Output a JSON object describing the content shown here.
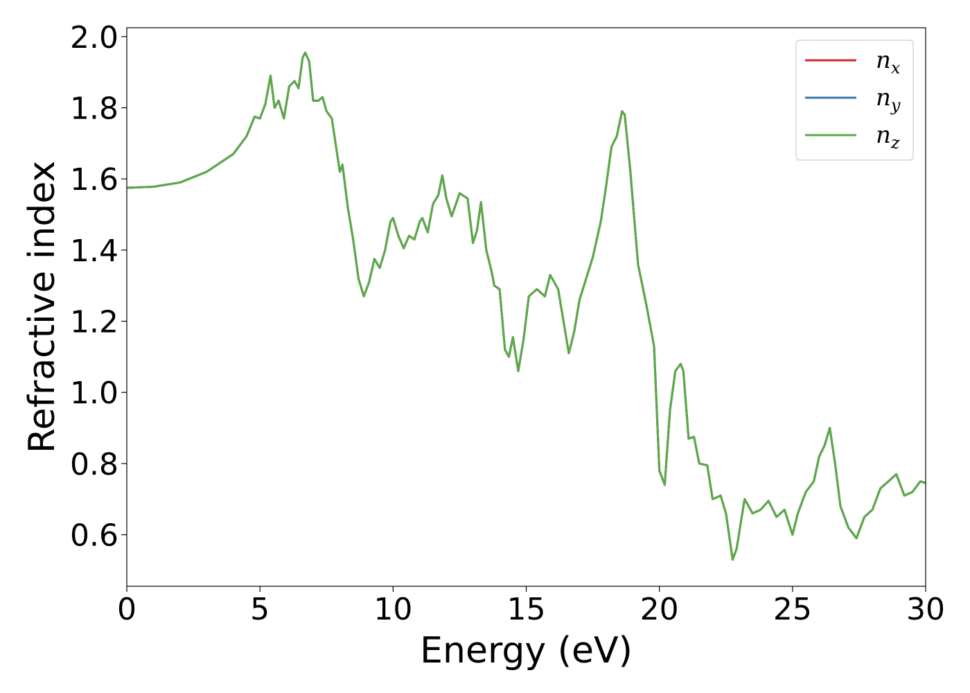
{
  "chart_data": {
    "type": "line",
    "title": "",
    "xlabel": "Energy (eV)",
    "ylabel": "Refractive index",
    "xlim": [
      0,
      30
    ],
    "ylim": [
      0.455,
      2.025
    ],
    "xticks": [
      0,
      5,
      10,
      15,
      20,
      25,
      30
    ],
    "xtick_labels": [
      "0",
      "5",
      "10",
      "15",
      "20",
      "25",
      "30"
    ],
    "yticks": [
      0.6,
      0.8,
      1.0,
      1.2,
      1.4,
      1.6,
      1.8,
      2.0
    ],
    "ytick_labels": [
      "0.6",
      "0.8",
      "1.0",
      "1.2",
      "1.4",
      "1.6",
      "1.8",
      "2.0"
    ],
    "grid": false,
    "legend_position": "top-right",
    "series": [
      {
        "name": "n_x",
        "label_main": "n",
        "label_sub": "x",
        "color": "#d62728",
        "points": [
          [
            0,
            1.575
          ],
          [
            1,
            1.578
          ],
          [
            2,
            1.59
          ],
          [
            3,
            1.62
          ],
          [
            4,
            1.67
          ],
          [
            4.5,
            1.72
          ],
          [
            4.8,
            1.775
          ],
          [
            5.0,
            1.77
          ],
          [
            5.2,
            1.81
          ],
          [
            5.4,
            1.89
          ],
          [
            5.55,
            1.8
          ],
          [
            5.7,
            1.82
          ],
          [
            5.9,
            1.77
          ],
          [
            6.1,
            1.86
          ],
          [
            6.3,
            1.875
          ],
          [
            6.45,
            1.855
          ],
          [
            6.6,
            1.94
          ],
          [
            6.7,
            1.955
          ],
          [
            6.85,
            1.93
          ],
          [
            7.0,
            1.82
          ],
          [
            7.2,
            1.82
          ],
          [
            7.35,
            1.83
          ],
          [
            7.5,
            1.79
          ],
          [
            7.7,
            1.77
          ],
          [
            7.9,
            1.67
          ],
          [
            8.0,
            1.62
          ],
          [
            8.1,
            1.64
          ],
          [
            8.3,
            1.52
          ],
          [
            8.5,
            1.43
          ],
          [
            8.7,
            1.32
          ],
          [
            8.9,
            1.27
          ],
          [
            9.1,
            1.31
          ],
          [
            9.3,
            1.375
          ],
          [
            9.5,
            1.35
          ],
          [
            9.7,
            1.4
          ],
          [
            9.9,
            1.48
          ],
          [
            10.0,
            1.49
          ],
          [
            10.2,
            1.44
          ],
          [
            10.4,
            1.405
          ],
          [
            10.6,
            1.44
          ],
          [
            10.8,
            1.43
          ],
          [
            11.0,
            1.48
          ],
          [
            11.1,
            1.49
          ],
          [
            11.3,
            1.45
          ],
          [
            11.5,
            1.53
          ],
          [
            11.7,
            1.555
          ],
          [
            11.85,
            1.61
          ],
          [
            12.0,
            1.545
          ],
          [
            12.2,
            1.495
          ],
          [
            12.5,
            1.56
          ],
          [
            12.8,
            1.545
          ],
          [
            13.0,
            1.42
          ],
          [
            13.15,
            1.455
          ],
          [
            13.3,
            1.535
          ],
          [
            13.5,
            1.4
          ],
          [
            13.7,
            1.34
          ],
          [
            13.8,
            1.3
          ],
          [
            14.0,
            1.29
          ],
          [
            14.2,
            1.12
          ],
          [
            14.35,
            1.1
          ],
          [
            14.5,
            1.155
          ],
          [
            14.7,
            1.06
          ],
          [
            14.9,
            1.15
          ],
          [
            15.1,
            1.27
          ],
          [
            15.4,
            1.29
          ],
          [
            15.7,
            1.27
          ],
          [
            15.9,
            1.33
          ],
          [
            16.2,
            1.29
          ],
          [
            16.4,
            1.2
          ],
          [
            16.6,
            1.11
          ],
          [
            16.8,
            1.17
          ],
          [
            17.0,
            1.26
          ],
          [
            17.5,
            1.38
          ],
          [
            17.8,
            1.48
          ],
          [
            18.0,
            1.58
          ],
          [
            18.2,
            1.69
          ],
          [
            18.4,
            1.72
          ],
          [
            18.6,
            1.79
          ],
          [
            18.7,
            1.78
          ],
          [
            18.9,
            1.63
          ],
          [
            19.2,
            1.36
          ],
          [
            19.5,
            1.25
          ],
          [
            19.8,
            1.13
          ],
          [
            20.0,
            0.78
          ],
          [
            20.2,
            0.74
          ],
          [
            20.4,
            0.95
          ],
          [
            20.6,
            1.06
          ],
          [
            20.8,
            1.08
          ],
          [
            20.9,
            1.06
          ],
          [
            21.1,
            0.87
          ],
          [
            21.3,
            0.875
          ],
          [
            21.5,
            0.8
          ],
          [
            21.8,
            0.795
          ],
          [
            22.0,
            0.7
          ],
          [
            22.3,
            0.71
          ],
          [
            22.5,
            0.66
          ],
          [
            22.75,
            0.53
          ],
          [
            22.9,
            0.56
          ],
          [
            23.2,
            0.7
          ],
          [
            23.5,
            0.66
          ],
          [
            23.8,
            0.67
          ],
          [
            24.1,
            0.695
          ],
          [
            24.4,
            0.65
          ],
          [
            24.7,
            0.67
          ],
          [
            25.0,
            0.6
          ],
          [
            25.2,
            0.66
          ],
          [
            25.5,
            0.72
          ],
          [
            25.8,
            0.75
          ],
          [
            26.0,
            0.82
          ],
          [
            26.2,
            0.85
          ],
          [
            26.4,
            0.9
          ],
          [
            26.6,
            0.8
          ],
          [
            26.8,
            0.68
          ],
          [
            27.1,
            0.62
          ],
          [
            27.4,
            0.59
          ],
          [
            27.7,
            0.65
          ],
          [
            28.0,
            0.67
          ],
          [
            28.3,
            0.73
          ],
          [
            28.6,
            0.75
          ],
          [
            28.9,
            0.77
          ],
          [
            29.2,
            0.71
          ],
          [
            29.5,
            0.72
          ],
          [
            29.8,
            0.75
          ],
          [
            30.0,
            0.745
          ]
        ]
      },
      {
        "name": "n_y",
        "label_main": "n",
        "label_sub": "y",
        "color": "#3b75af",
        "same_as": 0
      },
      {
        "name": "n_z",
        "label_main": "n",
        "label_sub": "z",
        "color": "#5aaa46",
        "same_as": 0
      }
    ]
  }
}
